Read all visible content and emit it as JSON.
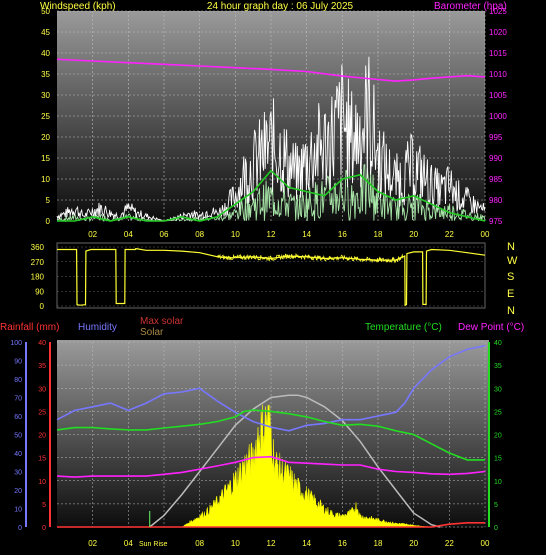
{
  "header": {
    "windspeed_label": "Windspeed (kph)",
    "title": "24 hour graph day : 06 July 2025",
    "barometer_label": "Barometer (hpa)"
  },
  "colors": {
    "background": "#000000",
    "plot_top": "#9a9a9a",
    "plot_bottom": "#0c0c0c",
    "grid": "#bdbdbd",
    "wind_gust": "#ffffff",
    "wind_avg": "#cfcfcf",
    "wind_light": "#a8e6a8",
    "wind_avg_line": "#22cc22",
    "barometer": "#ff22ff",
    "direction": "#ffff33",
    "rain_axis": "#ff3333",
    "humidity": "#7777ff",
    "temperature": "#22dd22",
    "dew_point": "#ff22ff",
    "solar": "#ffff00",
    "max_solar": "#bbbbbb",
    "text_yellow": "#ffff44"
  },
  "time_ticks": [
    "02",
    "04",
    "06",
    "08",
    "10",
    "12",
    "14",
    "16",
    "18",
    "20",
    "22",
    "00"
  ],
  "direction_labels": [
    "N",
    "W",
    "S",
    "E",
    "N"
  ],
  "bottom_labels": {
    "rainfall": "Rainfall (mm)",
    "humidity": "Humidity",
    "max_solar": "Max solar",
    "solar": "Solar",
    "temperature": "Temperature (°C)",
    "dew_point": "Dew Point (°C)",
    "sunrise": "Sun Rise"
  },
  "chart_data": [
    {
      "type": "line",
      "title": "24 hour graph day : 06 July 2025",
      "x_unit": "hour",
      "xlim": [
        0,
        24
      ],
      "ylabel": "Windspeed (kph)",
      "ylim": [
        0,
        50
      ],
      "yticks": [
        0,
        5,
        10,
        15,
        20,
        25,
        30,
        35,
        40,
        45,
        50
      ],
      "y2label": "Barometer (hpa)",
      "y2lim": [
        975,
        1025
      ],
      "y2ticks": [
        975,
        980,
        985,
        990,
        995,
        1000,
        1005,
        1010,
        1015,
        1020,
        1025
      ],
      "series": [
        {
          "name": "Windspeed (kph)",
          "role": "gust",
          "x": [
            0,
            0.5,
            1,
            1.5,
            2,
            2.5,
            3,
            3.5,
            4,
            4.5,
            5,
            5.5,
            6,
            6.5,
            7,
            7.5,
            8,
            8.5,
            9,
            9.5,
            10,
            10.5,
            11,
            11.5,
            12,
            12.5,
            13,
            13.5,
            14,
            14.5,
            15,
            15.5,
            16,
            16.5,
            17,
            17.5,
            18,
            18.5,
            19,
            19.5,
            20,
            20.5,
            21,
            21.5,
            22,
            22.5,
            23,
            23.5,
            24
          ],
          "values": [
            2,
            3,
            5,
            2,
            4,
            5,
            3,
            2,
            5,
            3,
            2,
            1,
            0,
            1,
            2,
            3,
            2,
            4,
            3,
            6,
            10,
            18,
            22,
            26,
            30,
            28,
            22,
            18,
            24,
            28,
            30,
            34,
            40,
            32,
            36,
            42,
            26,
            20,
            16,
            18,
            22,
            18,
            14,
            12,
            14,
            10,
            8,
            6,
            4
          ]
        },
        {
          "name": "Average",
          "role": "average",
          "x": [
            0,
            1,
            2,
            3,
            4,
            5,
            6,
            7,
            8,
            9,
            10,
            11,
            12,
            13,
            14,
            15,
            16,
            17,
            18,
            19,
            20,
            21,
            22,
            23,
            24
          ],
          "values": [
            0,
            0,
            1,
            0,
            1,
            0,
            0,
            1,
            0,
            1,
            4,
            7,
            12,
            8,
            7,
            6,
            10,
            11,
            7,
            5,
            6,
            4,
            2,
            1,
            0
          ]
        },
        {
          "name": "Barometer (hpa)",
          "role": "barometer",
          "axis": "y2",
          "x": [
            0,
            2,
            4,
            6,
            8,
            10,
            12,
            14,
            16,
            18,
            19,
            20,
            21,
            22,
            23,
            24
          ],
          "values": [
            1013.5,
            1013.1,
            1012.7,
            1012.3,
            1011.9,
            1011.5,
            1011.1,
            1010.6,
            1009.5,
            1008.7,
            1008.3,
            1008.6,
            1009.0,
            1009.3,
            1009.6,
            1009.3
          ]
        }
      ]
    },
    {
      "type": "line",
      "x_unit": "hour",
      "xlim": [
        0,
        24
      ],
      "ylim": [
        0,
        360
      ],
      "yticks": [
        0,
        90,
        180,
        270,
        360
      ],
      "direction_labels": [
        "N",
        "W",
        "S",
        "E",
        "N"
      ],
      "series": [
        {
          "name": "Wind direction",
          "x": [
            0,
            0.4,
            1.1,
            1.12,
            1.3,
            1.6,
            1.62,
            1.9,
            2.3,
            2.32,
            3.1,
            3.3,
            3.32,
            3.8,
            3.82,
            4.4,
            4.42,
            5,
            6,
            7,
            8,
            9,
            9.5,
            10,
            11,
            12,
            13,
            14,
            15,
            16,
            17,
            18,
            19,
            19.5,
            19.52,
            19.6,
            19.62,
            20,
            20.5,
            20.52,
            20.7,
            20.72,
            21,
            22,
            23,
            24
          ],
          "values": [
            345,
            345,
            345,
            8,
            5,
            8,
            335,
            345,
            345,
            345,
            345,
            345,
            15,
            15,
            345,
            345,
            350,
            340,
            340,
            335,
            325,
            300,
            295,
            295,
            300,
            290,
            305,
            300,
            290,
            295,
            285,
            280,
            280,
            305,
            5,
            10,
            320,
            330,
            330,
            10,
            10,
            335,
            345,
            340,
            325,
            310
          ]
        }
      ]
    },
    {
      "type": "line",
      "x_unit": "hour",
      "xlim": [
        0,
        24
      ],
      "y_humidity": {
        "label": "Humidity",
        "lim": [
          0,
          100
        ],
        "ticks": [
          0,
          10,
          20,
          30,
          40,
          50,
          60,
          70,
          80,
          90,
          100
        ]
      },
      "y_rain": {
        "label": "Rainfall (mm)",
        "lim": [
          0,
          40
        ],
        "ticks": [
          0,
          5,
          10,
          15,
          20,
          25,
          30,
          35,
          40
        ]
      },
      "y_temp": {
        "label": "Temperature (°C)",
        "lim": [
          0,
          40
        ],
        "ticks": [
          0,
          5,
          10,
          15,
          20,
          25,
          30,
          35,
          40
        ]
      },
      "sunrise_hour": 5.2,
      "series": [
        {
          "name": "Humidity",
          "axis": "humidity",
          "x": [
            0,
            1,
            2,
            3,
            4,
            5,
            6,
            7,
            8,
            9,
            10,
            11,
            12,
            13,
            14,
            15,
            16,
            17,
            18,
            19,
            19.5,
            20,
            20.5,
            21,
            22,
            23,
            24
          ],
          "values": [
            58,
            63,
            65,
            67,
            63,
            67,
            72,
            73,
            75,
            68,
            62,
            57,
            54,
            52,
            55,
            56,
            58,
            58,
            60,
            62,
            67,
            75,
            80,
            85,
            92,
            96,
            98
          ]
        },
        {
          "name": "Temperature (°C)",
          "axis": "temp",
          "x": [
            0,
            1,
            2,
            3,
            4,
            5,
            6,
            7,
            8,
            9,
            10,
            10.5,
            11,
            12,
            13,
            14,
            15,
            16,
            17,
            18,
            19,
            20,
            21,
            22,
            23,
            24
          ],
          "values": [
            21,
            21.5,
            21.5,
            21.2,
            21,
            21,
            21.4,
            21.8,
            22.2,
            22.8,
            23.8,
            25,
            25.3,
            25,
            24.5,
            23.8,
            22.8,
            22,
            22.2,
            21.8,
            20.8,
            20,
            18,
            16,
            14.5,
            14.5
          ]
        },
        {
          "name": "Dew Point (°C)",
          "axis": "temp",
          "x": [
            0,
            1,
            2,
            3,
            4,
            5,
            6,
            7,
            8,
            9,
            10,
            11,
            12,
            13,
            14,
            15,
            16,
            17,
            18,
            19,
            20,
            21,
            22,
            23,
            24
          ],
          "values": [
            11,
            10.8,
            11,
            11,
            11,
            11,
            11.4,
            11.8,
            12.5,
            13.2,
            14,
            15,
            15.2,
            14,
            13.8,
            13.6,
            13.4,
            13.4,
            12.5,
            12,
            11.8,
            11.5,
            11.4,
            11.6,
            12
          ]
        },
        {
          "name": "Max solar",
          "axis": "temp",
          "x": [
            5.2,
            6,
            7,
            8,
            9,
            10,
            11,
            12,
            13,
            13.5,
            14,
            15,
            16,
            17,
            18,
            19,
            20,
            21,
            21.5
          ],
          "values": [
            0,
            2.5,
            7,
            12,
            17,
            22,
            25.5,
            28,
            28.5,
            28.5,
            28,
            26,
            23,
            18.5,
            13,
            8,
            3,
            0.5,
            0
          ]
        },
        {
          "name": "Solar",
          "axis": "temp",
          "role": "area",
          "x": [
            7,
            7.5,
            8,
            8.5,
            9,
            9.5,
            10,
            10.5,
            11,
            11.3,
            11.6,
            11.8,
            12,
            12.2,
            12.5,
            13,
            13.5,
            14,
            14.5,
            15,
            15.5,
            16,
            16.5,
            16.8,
            17,
            17.5,
            18,
            18.5,
            19,
            19.5,
            20,
            20.5,
            21
          ],
          "values": [
            0,
            1.5,
            3,
            4.5,
            7,
            10,
            13,
            17,
            19,
            26,
            28,
            30,
            27,
            18,
            16,
            14,
            11,
            9,
            7,
            5,
            3.5,
            3,
            4,
            6,
            3,
            2.5,
            2,
            1.5,
            1,
            0.8,
            0.5,
            0.2,
            0
          ]
        },
        {
          "name": "Rainfall (mm)",
          "axis": "rain",
          "x": [
            0,
            19,
            20,
            21,
            22,
            23,
            24
          ],
          "values": [
            0,
            0,
            0,
            0,
            0.6,
            0.9,
            0.9
          ]
        }
      ]
    }
  ]
}
